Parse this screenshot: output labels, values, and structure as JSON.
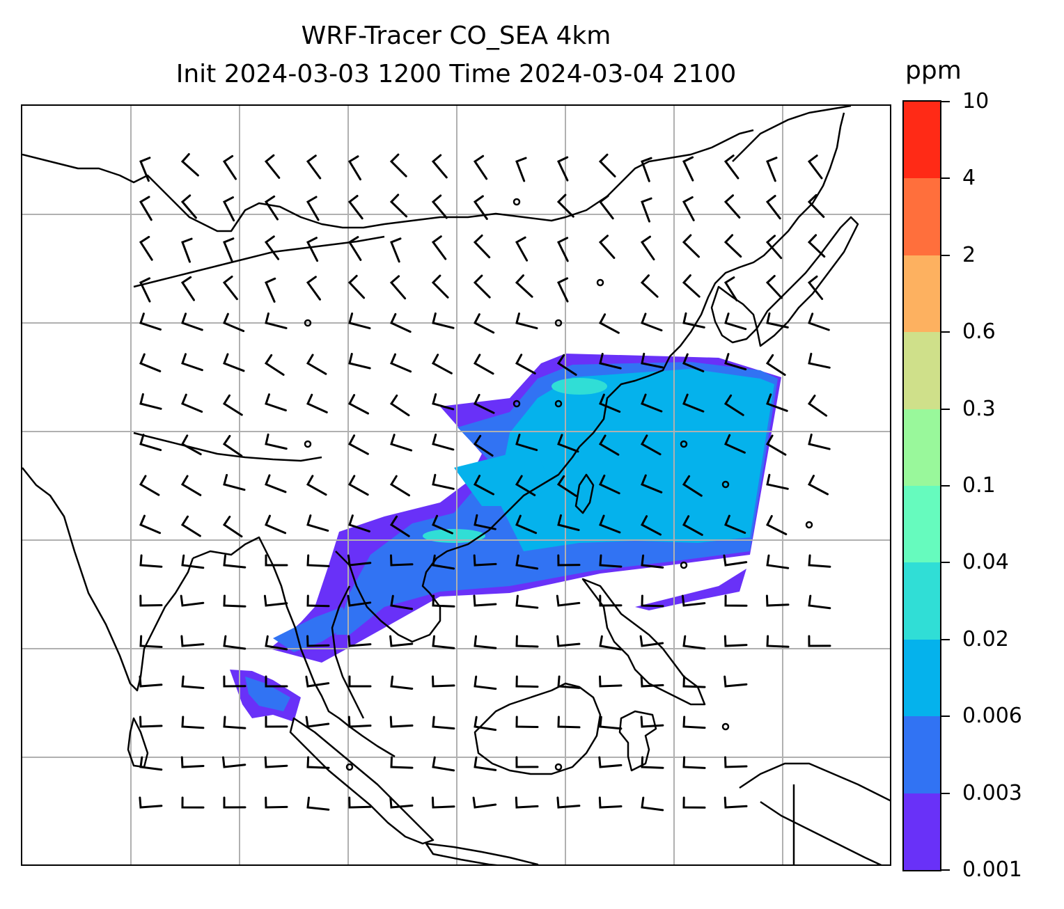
{
  "title": {
    "line1": "WRF-Tracer CO_SEA 4km",
    "line2": "Init 2024-03-03 1200 Time 2024-03-04 2100"
  },
  "colorbar": {
    "label": "ppm",
    "ticks": [
      "10",
      "4",
      "2",
      "0.6",
      "0.3",
      "0.1",
      "0.04",
      "0.02",
      "0.006",
      "0.003",
      "0.001"
    ],
    "colors": [
      "#ff2a16",
      "#ff6f3c",
      "#fdb160",
      "#cfe08a",
      "#99f89b",
      "#66fbbe",
      "#30ded6",
      "#05b2ec",
      "#3173f3",
      "#6931f8"
    ]
  },
  "map": {
    "grid": "on",
    "gridColor": "#b0b0b0",
    "overlay": "wind barbs",
    "calmMarker": "circle",
    "plume": "CO tracer concentration (ppm)"
  }
}
